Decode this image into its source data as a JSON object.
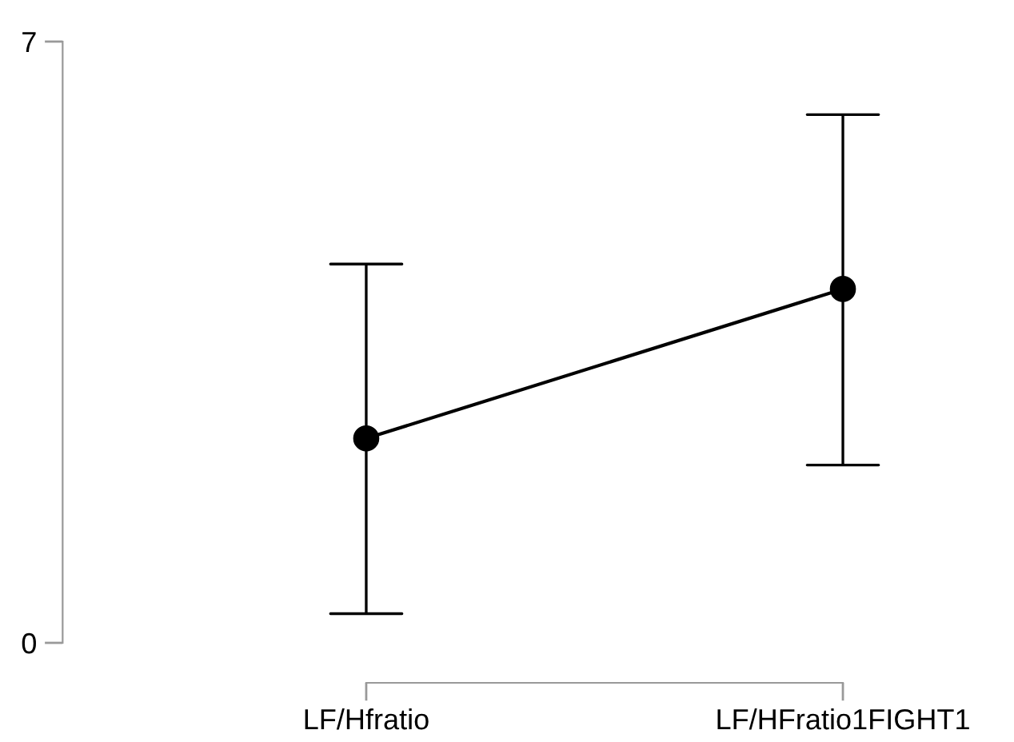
{
  "chart_data": {
    "type": "line",
    "categories": [
      "LF/Hfratio",
      "LF/HFratio1FIGHT1"
    ],
    "values": [
      2.38,
      4.12
    ],
    "errors": [
      [
        0.34,
        4.41
      ],
      [
        2.07,
        6.15
      ]
    ],
    "color": "#000000",
    "marker": "circle",
    "line_style": "solid",
    "ylim": [
      0,
      7
    ],
    "yticks": [
      0,
      7
    ],
    "grid": false,
    "legend": false
  }
}
